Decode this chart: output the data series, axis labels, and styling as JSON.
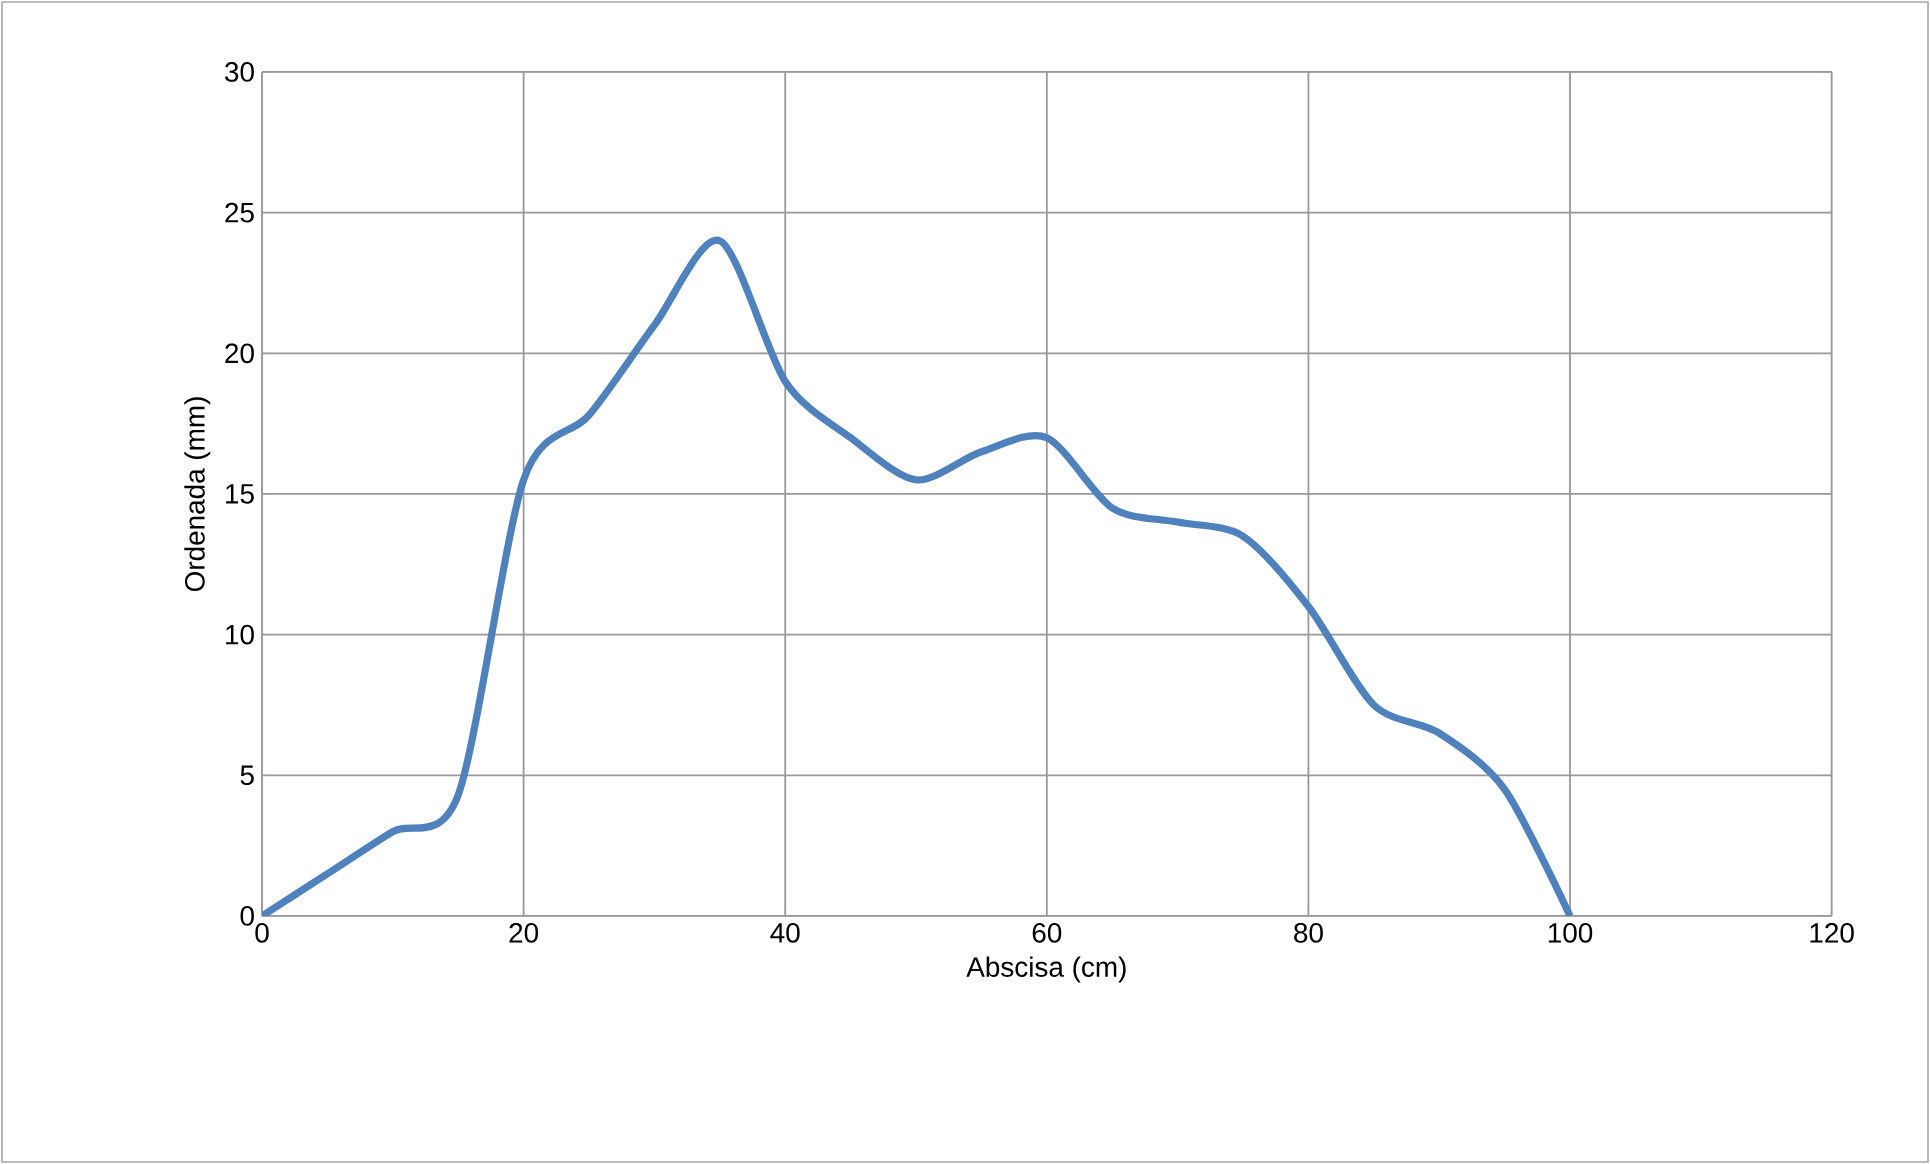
{
  "chart_data": {
    "type": "line",
    "xlabel": "Abscisa (cm)",
    "ylabel": "Ordenada (mm)",
    "x": [
      0,
      5,
      10,
      15,
      20,
      25,
      30,
      35,
      40,
      45,
      50,
      55,
      60,
      65,
      70,
      75,
      80,
      85,
      90,
      95,
      100
    ],
    "series": [
      {
        "color": "#4f81bd",
        "values": [
          0,
          1.5,
          3,
          4.3,
          15.5,
          17.8,
          21,
          24,
          19,
          17,
          15.5,
          16.5,
          17,
          14.5,
          14,
          13.5,
          11,
          7.5,
          6.5,
          4.5,
          0
        ]
      }
    ],
    "xlim": [
      0,
      120
    ],
    "ylim": [
      0,
      30
    ],
    "xticks": [
      0,
      20,
      40,
      60,
      80,
      100,
      120
    ],
    "yticks": [
      0,
      5,
      10,
      15,
      20,
      25,
      30
    ],
    "grid": true,
    "marker": "none",
    "line_style": "solid"
  }
}
